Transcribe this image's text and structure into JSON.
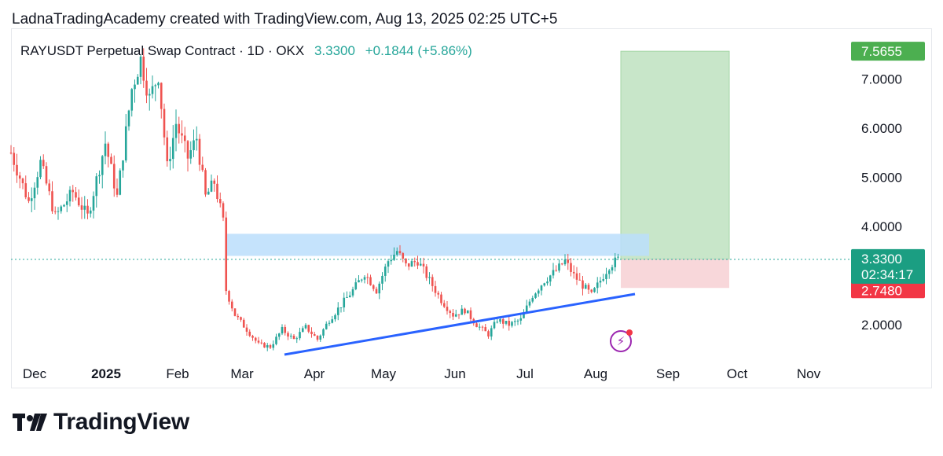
{
  "header": {
    "text": "LadnaTradingAcademy created with TradingView.com, Aug 13, 2025 02:25 UTC+5"
  },
  "legend": {
    "symbol": "RAYUSDT Perpetual Swap Contract · 1D · OKX",
    "price": "3.3300",
    "change": "+0.1844 (+5.86%)"
  },
  "brand": {
    "name": "TradingView",
    "icon": "tradingview-logo-icon"
  },
  "indicator_icon": "lightning-icon",
  "colors": {
    "up": "#26a69a",
    "down": "#ef5350",
    "target_zone": "#c8e6c9",
    "stop_zone": "#f8d7da",
    "resistance_zone": "#bbdefb",
    "trendline": "#2962ff",
    "target_label": "#4caf50",
    "stop_label": "#f23645"
  },
  "chart_data": {
    "type": "candlestick",
    "x_labels": [
      "Dec",
      "2025",
      "Feb",
      "Mar",
      "Apr",
      "May",
      "Jun",
      "Jul",
      "Aug",
      "Sep",
      "Oct",
      "Nov"
    ],
    "y_ticks": [
      "2.0000",
      "4.0000",
      "5.0000",
      "6.0000",
      "7.0000"
    ],
    "ylim": [
      1.0,
      7.9
    ],
    "last_price": {
      "value": 3.33,
      "label": "3.3300",
      "countdown": "02:34:17"
    },
    "target": {
      "value": 7.5655,
      "label": "7.5655"
    },
    "stop": {
      "value": 2.748,
      "label": "2.7480"
    },
    "resistance_zone": {
      "low": 3.4,
      "high": 3.85
    },
    "trendline": {
      "start": [
        "2025-03-15",
        1.3
      ],
      "end": [
        "2025-08-23",
        2.6
      ]
    },
    "close_path": [
      [
        0,
        5.5
      ],
      [
        6,
        4.5
      ],
      [
        10,
        5.3
      ],
      [
        15,
        4.2
      ],
      [
        21,
        4.7
      ],
      [
        26,
        4.2
      ],
      [
        32,
        5.7
      ],
      [
        36,
        4.6
      ],
      [
        41,
        6.8
      ],
      [
        44,
        7.4
      ],
      [
        47,
        6.6
      ],
      [
        50,
        7.1
      ],
      [
        53,
        5.2
      ],
      [
        56,
        6.1
      ],
      [
        60,
        5.4
      ],
      [
        63,
        5.8
      ],
      [
        66,
        4.6
      ],
      [
        69,
        4.9
      ],
      [
        72,
        4.1
      ],
      [
        73,
        2.7
      ],
      [
        76,
        2.2
      ],
      [
        80,
        1.9
      ],
      [
        84,
        1.6
      ],
      [
        88,
        1.55
      ],
      [
        92,
        1.9
      ],
      [
        96,
        1.7
      ],
      [
        100,
        1.95
      ],
      [
        104,
        1.7
      ],
      [
        108,
        2.1
      ],
      [
        112,
        2.4
      ],
      [
        116,
        2.7
      ],
      [
        120,
        3.05
      ],
      [
        124,
        2.7
      ],
      [
        128,
        3.3
      ],
      [
        131,
        3.5
      ],
      [
        134,
        3.2
      ],
      [
        138,
        3.3
      ],
      [
        142,
        2.9
      ],
      [
        146,
        2.5
      ],
      [
        150,
        2.2
      ],
      [
        154,
        2.3
      ],
      [
        158,
        2.0
      ],
      [
        162,
        1.8
      ],
      [
        165,
        2.1
      ],
      [
        169,
        2.0
      ],
      [
        173,
        2.1
      ],
      [
        177,
        2.6
      ],
      [
        181,
        2.9
      ],
      [
        185,
        3.1
      ],
      [
        188,
        3.3
      ],
      [
        191,
        3.0
      ],
      [
        194,
        2.8
      ],
      [
        197,
        2.6
      ],
      [
        200,
        2.9
      ],
      [
        203,
        3.2
      ],
      [
        206,
        3.33
      ]
    ]
  }
}
